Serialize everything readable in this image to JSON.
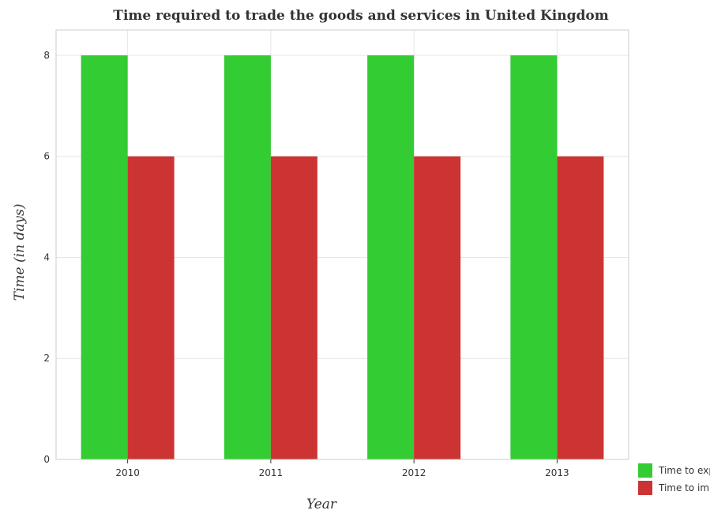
{
  "chart_data": {
    "type": "bar",
    "title": "Time required to trade the goods and services in United Kingdom",
    "xlabel": "Year",
    "ylabel": "Time (in days)",
    "categories": [
      "2010",
      "2011",
      "2012",
      "2013"
    ],
    "series": [
      {
        "name": "Time to export",
        "values": [
          8,
          8,
          8,
          8
        ],
        "color": "#33cc33"
      },
      {
        "name": "Time to import",
        "values": [
          6,
          6,
          6,
          6
        ],
        "color": "#cc3333"
      }
    ],
    "ylim": [
      0,
      8.5
    ],
    "yticks": [
      0,
      2,
      4,
      6,
      8
    ],
    "grid": true,
    "legend_position": "bottom-right"
  }
}
